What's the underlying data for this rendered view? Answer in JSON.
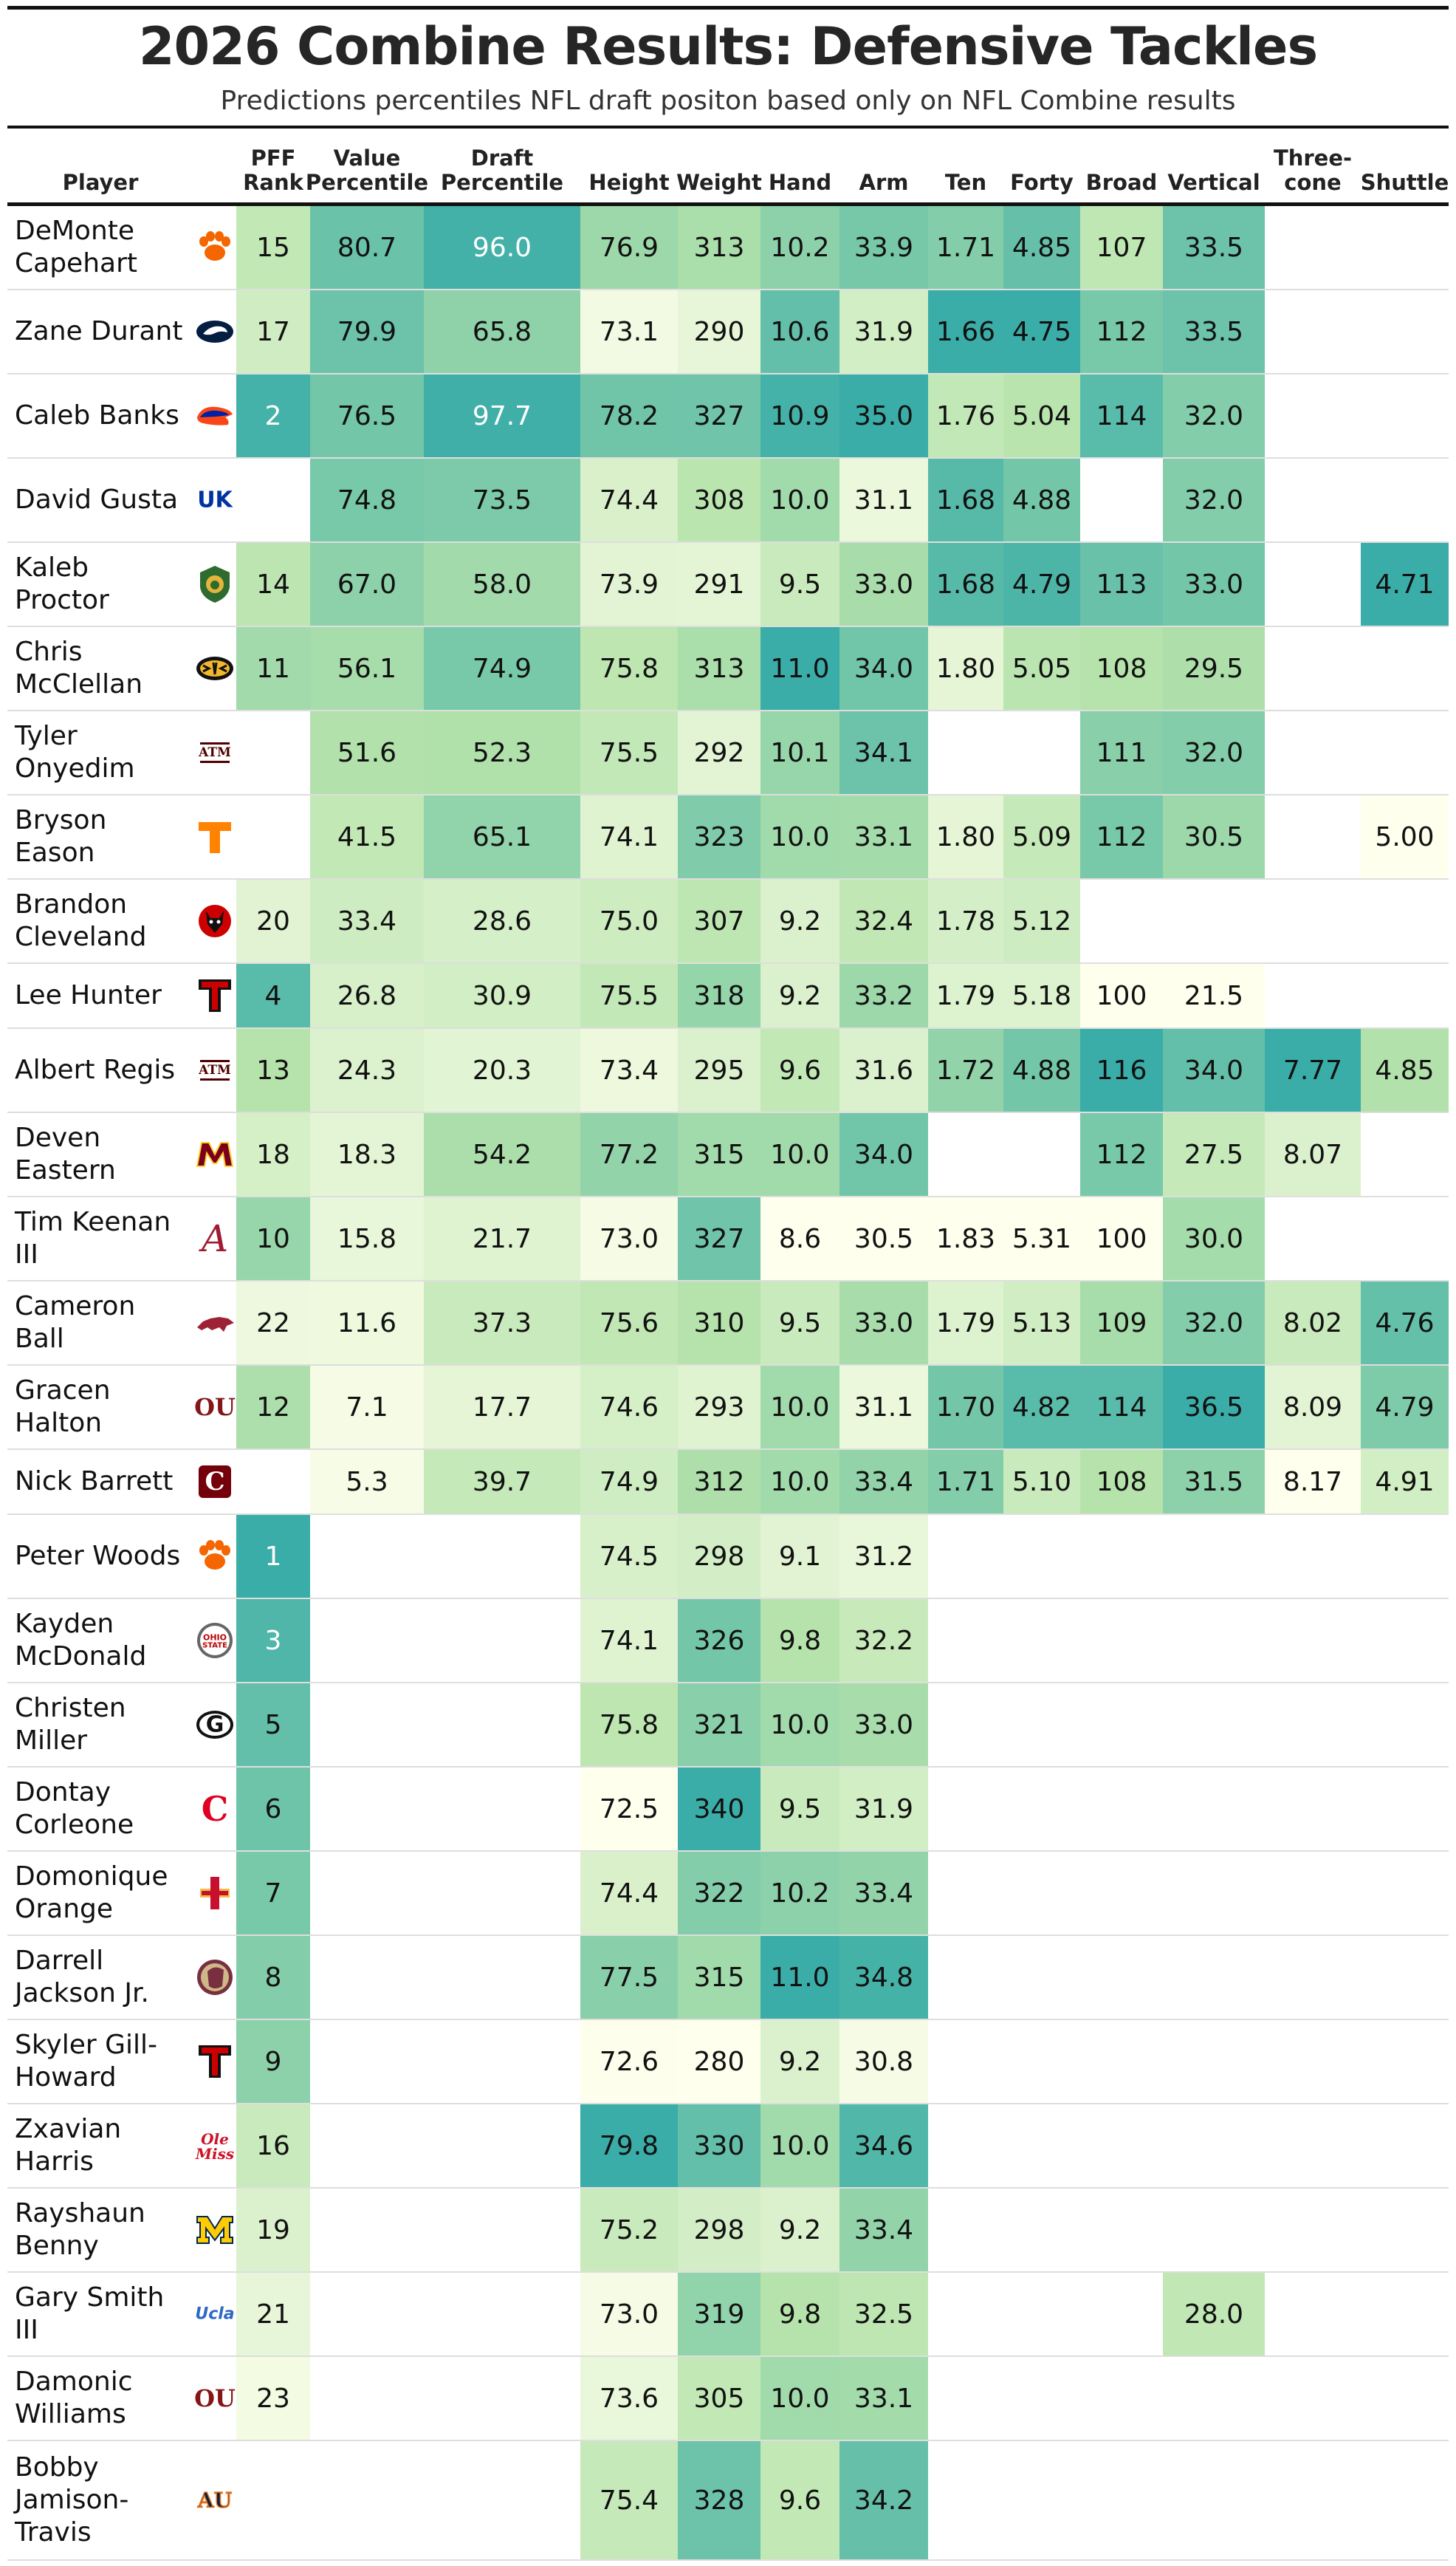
{
  "title": "2026 Combine Results: Defensive Tackles",
  "subtitle": "Predictions percentiles NFL draft positon based only on NFL Combine results",
  "chart_data": {
    "type": "table",
    "title": "2026 Combine Results: Defensive Tackles",
    "subtitle": "Predictions percentiles NFL draft positon based only on NFL Combine results",
    "columns": [
      {
        "key": "player",
        "label": "Player"
      },
      {
        "key": "rank",
        "label": "PFF Rank"
      },
      {
        "key": "value",
        "label": "Value Percentile"
      },
      {
        "key": "draft",
        "label": "Draft Percentile"
      },
      {
        "key": "height",
        "label": "Height"
      },
      {
        "key": "weight",
        "label": "Weight"
      },
      {
        "key": "hand",
        "label": "Hand"
      },
      {
        "key": "arm",
        "label": "Arm"
      },
      {
        "key": "ten",
        "label": "Ten"
      },
      {
        "key": "forty",
        "label": "Forty"
      },
      {
        "key": "broad",
        "label": "Broad"
      },
      {
        "key": "vertical",
        "label": "Vertical"
      },
      {
        "key": "three",
        "label": "Three-cone"
      },
      {
        "key": "shuttle",
        "label": "Shuttle"
      }
    ],
    "rows": [
      {
        "player": "DeMonte Capehart",
        "logo": "clemson-paw-logo",
        "rank": "15",
        "value": "80.7",
        "draft": "96.0",
        "height": "76.9",
        "weight": "313",
        "hand": "10.2",
        "arm": "33.9",
        "ten": "1.71",
        "forty": "4.85",
        "broad": "107",
        "vertical": "33.5",
        "three": "",
        "shuttle": ""
      },
      {
        "player": "Zane Durant",
        "logo": "penn-state-lion-logo",
        "rank": "17",
        "value": "79.9",
        "draft": "65.8",
        "height": "73.1",
        "weight": "290",
        "hand": "10.6",
        "arm": "31.9",
        "ten": "1.66",
        "forty": "4.75",
        "broad": "112",
        "vertical": "33.5",
        "three": "",
        "shuttle": ""
      },
      {
        "player": "Caleb Banks",
        "logo": "florida-gator-logo",
        "rank": "2",
        "value": "76.5",
        "draft": "97.7",
        "height": "78.2",
        "weight": "327",
        "hand": "10.9",
        "arm": "35.0",
        "ten": "1.76",
        "forty": "5.04",
        "broad": "114",
        "vertical": "32.0",
        "three": "",
        "shuttle": ""
      },
      {
        "player": "David Gusta",
        "logo": "kentucky-uk-logo",
        "rank": "",
        "value": "74.8",
        "draft": "73.5",
        "height": "74.4",
        "weight": "308",
        "hand": "10.0",
        "arm": "31.1",
        "ten": "1.68",
        "forty": "4.88",
        "broad": "",
        "vertical": "32.0",
        "three": "",
        "shuttle": ""
      },
      {
        "player": "Kaleb Proctor",
        "logo": "southeastern-louisiana-lion-logo",
        "rank": "14",
        "value": "67.0",
        "draft": "58.0",
        "height": "73.9",
        "weight": "291",
        "hand": "9.5",
        "arm": "33.0",
        "ten": "1.68",
        "forty": "4.79",
        "broad": "113",
        "vertical": "33.0",
        "three": "",
        "shuttle": "4.71"
      },
      {
        "player": "Chris McClellan",
        "logo": "missouri-tiger-logo",
        "rank": "11",
        "value": "56.1",
        "draft": "74.9",
        "height": "75.8",
        "weight": "313",
        "hand": "11.0",
        "arm": "34.0",
        "ten": "1.80",
        "forty": "5.05",
        "broad": "108",
        "vertical": "29.5",
        "three": "",
        "shuttle": ""
      },
      {
        "player": "Tyler Onyedim",
        "logo": "texas-am-logo",
        "rank": "",
        "value": "51.6",
        "draft": "52.3",
        "height": "75.5",
        "weight": "292",
        "hand": "10.1",
        "arm": "34.1",
        "ten": "",
        "forty": "",
        "broad": "111",
        "vertical": "32.0",
        "three": "",
        "shuttle": ""
      },
      {
        "player": "Bryson Eason",
        "logo": "tennessee-t-logo",
        "rank": "",
        "value": "41.5",
        "draft": "65.1",
        "height": "74.1",
        "weight": "323",
        "hand": "10.0",
        "arm": "33.1",
        "ten": "1.80",
        "forty": "5.09",
        "broad": "112",
        "vertical": "30.5",
        "three": "",
        "shuttle": "5.00"
      },
      {
        "player": "Brandon Cleveland",
        "logo": "nc-state-wolf-logo",
        "rank": "20",
        "value": "33.4",
        "draft": "28.6",
        "height": "75.0",
        "weight": "307",
        "hand": "9.2",
        "arm": "32.4",
        "ten": "1.78",
        "forty": "5.12",
        "broad": "",
        "vertical": "",
        "three": "",
        "shuttle": ""
      },
      {
        "player": "Lee Hunter",
        "logo": "texas-tech-logo",
        "rank": "4",
        "value": "26.8",
        "draft": "30.9",
        "height": "75.5",
        "weight": "318",
        "hand": "9.2",
        "arm": "33.2",
        "ten": "1.79",
        "forty": "5.18",
        "broad": "100",
        "vertical": "21.5",
        "three": "",
        "shuttle": ""
      },
      {
        "player": "Albert Regis",
        "logo": "texas-am-logo",
        "rank": "13",
        "value": "24.3",
        "draft": "20.3",
        "height": "73.4",
        "weight": "295",
        "hand": "9.6",
        "arm": "31.6",
        "ten": "1.72",
        "forty": "4.88",
        "broad": "116",
        "vertical": "34.0",
        "three": "7.77",
        "shuttle": "4.85"
      },
      {
        "player": "Deven Eastern",
        "logo": "minnesota-m-logo",
        "rank": "18",
        "value": "18.3",
        "draft": "54.2",
        "height": "77.2",
        "weight": "315",
        "hand": "10.0",
        "arm": "34.0",
        "ten": "",
        "forty": "",
        "broad": "112",
        "vertical": "27.5",
        "three": "8.07",
        "shuttle": ""
      },
      {
        "player": "Tim Keenan III",
        "logo": "alabama-a-logo",
        "rank": "10",
        "value": "15.8",
        "draft": "21.7",
        "height": "73.0",
        "weight": "327",
        "hand": "8.6",
        "arm": "30.5",
        "ten": "1.83",
        "forty": "5.31",
        "broad": "100",
        "vertical": "30.0",
        "three": "",
        "shuttle": ""
      },
      {
        "player": "Cameron Ball",
        "logo": "arkansas-hog-logo",
        "rank": "22",
        "value": "11.6",
        "draft": "37.3",
        "height": "75.6",
        "weight": "310",
        "hand": "9.5",
        "arm": "33.0",
        "ten": "1.79",
        "forty": "5.13",
        "broad": "109",
        "vertical": "32.0",
        "three": "8.02",
        "shuttle": "4.76"
      },
      {
        "player": "Gracen Halton",
        "logo": "oklahoma-ou-logo",
        "rank": "12",
        "value": "7.1",
        "draft": "17.7",
        "height": "74.6",
        "weight": "293",
        "hand": "10.0",
        "arm": "31.1",
        "ten": "1.70",
        "forty": "4.82",
        "broad": "114",
        "vertical": "36.5",
        "three": "8.09",
        "shuttle": "4.79"
      },
      {
        "player": "Nick Barrett",
        "logo": "south-carolina-c-logo",
        "rank": "",
        "value": "5.3",
        "draft": "39.7",
        "height": "74.9",
        "weight": "312",
        "hand": "10.0",
        "arm": "33.4",
        "ten": "1.71",
        "forty": "5.10",
        "broad": "108",
        "vertical": "31.5",
        "three": "8.17",
        "shuttle": "4.91"
      },
      {
        "player": "Peter Woods",
        "logo": "clemson-paw-logo",
        "rank": "1",
        "value": "",
        "draft": "",
        "height": "74.5",
        "weight": "298",
        "hand": "9.1",
        "arm": "31.2",
        "ten": "",
        "forty": "",
        "broad": "",
        "vertical": "",
        "three": "",
        "shuttle": ""
      },
      {
        "player": "Kayden McDonald",
        "logo": "ohio-state-logo",
        "rank": "3",
        "value": "",
        "draft": "",
        "height": "74.1",
        "weight": "326",
        "hand": "9.8",
        "arm": "32.2",
        "ten": "",
        "forty": "",
        "broad": "",
        "vertical": "",
        "three": "",
        "shuttle": ""
      },
      {
        "player": "Christen Miller",
        "logo": "georgia-g-logo",
        "rank": "5",
        "value": "",
        "draft": "",
        "height": "75.8",
        "weight": "321",
        "hand": "10.0",
        "arm": "33.0",
        "ten": "",
        "forty": "",
        "broad": "",
        "vertical": "",
        "three": "",
        "shuttle": ""
      },
      {
        "player": "Dontay Corleone",
        "logo": "cincinnati-c-logo",
        "rank": "6",
        "value": "",
        "draft": "",
        "height": "72.5",
        "weight": "340",
        "hand": "9.5",
        "arm": "31.9",
        "ten": "",
        "forty": "",
        "broad": "",
        "vertical": "",
        "three": "",
        "shuttle": ""
      },
      {
        "player": "Domonique Orange",
        "logo": "iowa-state-logo",
        "rank": "7",
        "value": "",
        "draft": "",
        "height": "74.4",
        "weight": "322",
        "hand": "10.2",
        "arm": "33.4",
        "ten": "",
        "forty": "",
        "broad": "",
        "vertical": "",
        "three": "",
        "shuttle": ""
      },
      {
        "player": "Darrell Jackson Jr.",
        "logo": "florida-state-logo",
        "rank": "8",
        "value": "",
        "draft": "",
        "height": "77.5",
        "weight": "315",
        "hand": "11.0",
        "arm": "34.8",
        "ten": "",
        "forty": "",
        "broad": "",
        "vertical": "",
        "three": "",
        "shuttle": ""
      },
      {
        "player": "Skyler Gill-Howard",
        "logo": "texas-tech-logo",
        "rank": "9",
        "value": "",
        "draft": "",
        "height": "72.6",
        "weight": "280",
        "hand": "9.2",
        "arm": "30.8",
        "ten": "",
        "forty": "",
        "broad": "",
        "vertical": "",
        "three": "",
        "shuttle": ""
      },
      {
        "player": "Zxavian Harris",
        "logo": "ole-miss-logo",
        "rank": "16",
        "value": "",
        "draft": "",
        "height": "79.8",
        "weight": "330",
        "hand": "10.0",
        "arm": "34.6",
        "ten": "",
        "forty": "",
        "broad": "",
        "vertical": "",
        "three": "",
        "shuttle": ""
      },
      {
        "player": "Rayshaun Benny",
        "logo": "michigan-m-logo",
        "rank": "19",
        "value": "",
        "draft": "",
        "height": "75.2",
        "weight": "298",
        "hand": "9.2",
        "arm": "33.4",
        "ten": "",
        "forty": "",
        "broad": "",
        "vertical": "",
        "three": "",
        "shuttle": ""
      },
      {
        "player": "Gary Smith III",
        "logo": "ucla-logo",
        "rank": "21",
        "value": "",
        "draft": "",
        "height": "73.0",
        "weight": "319",
        "hand": "9.8",
        "arm": "32.5",
        "ten": "",
        "forty": "",
        "broad": "",
        "vertical": "28.0",
        "three": "",
        "shuttle": ""
      },
      {
        "player": "Damonic Williams",
        "logo": "oklahoma-ou-logo",
        "rank": "23",
        "value": "",
        "draft": "",
        "height": "73.6",
        "weight": "305",
        "hand": "10.0",
        "arm": "33.1",
        "ten": "",
        "forty": "",
        "broad": "",
        "vertical": "",
        "three": "",
        "shuttle": ""
      },
      {
        "player": "Bobby Jamison-Travis",
        "logo": "auburn-au-logo",
        "rank": "",
        "value": "",
        "draft": "",
        "height": "75.4",
        "weight": "328",
        "hand": "9.6",
        "arm": "34.2",
        "ten": "",
        "forty": "",
        "broad": "",
        "vertical": "",
        "three": "",
        "shuttle": ""
      }
    ],
    "color_scale": {
      "low": "#ffffee",
      "mid": "#b6e3ab",
      "high": "#3aada8"
    },
    "logo_colors": {
      "clemson-paw-logo": "#F56600",
      "penn-state-lion-logo": "#041E42",
      "florida-gator-logo": "#0021A5",
      "kentucky-uk-logo": "#0033A0",
      "southeastern-louisiana-lion-logo": "#2E6B2E",
      "missouri-tiger-logo": "#111111",
      "texas-am-logo": "#500000",
      "tennessee-t-logo": "#FF8200",
      "nc-state-wolf-logo": "#CC0000",
      "texas-tech-logo": "#CC0000",
      "minnesota-m-logo": "#7A0019",
      "alabama-a-logo": "#9E1B32",
      "arkansas-hog-logo": "#9D2235",
      "oklahoma-ou-logo": "#841617",
      "south-carolina-c-logo": "#73000A",
      "ohio-state-logo": "#BB0000",
      "georgia-g-logo": "#BA0C2F",
      "cincinnati-c-logo": "#E00122",
      "iowa-state-logo": "#C8102E",
      "florida-state-logo": "#782F40",
      "ole-miss-logo": "#CE1126",
      "michigan-m-logo": "#FFCB05",
      "ucla-logo": "#2D68C4",
      "auburn-au-logo": "#0C2340"
    }
  }
}
